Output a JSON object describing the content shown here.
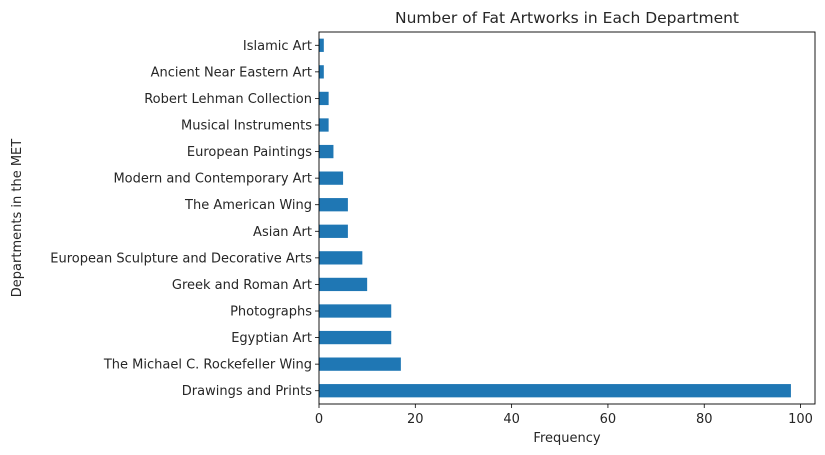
{
  "chart_data": {
    "type": "bar",
    "orientation": "horizontal",
    "title": "Number of Fat Artworks in Each Department",
    "xlabel": "Frequency",
    "ylabel": "Departments in the MET",
    "xlim": [
      0,
      103
    ],
    "xticks": [
      0,
      20,
      40,
      60,
      80,
      100
    ],
    "grid": false,
    "bar_color": "#1f77b4",
    "categories": [
      "Drawings and Prints",
      "The Michael C. Rockefeller Wing",
      "Egyptian Art",
      "Photographs",
      "Greek and Roman Art",
      "European Sculpture and Decorative Arts",
      "Asian Art",
      "The American Wing",
      "Modern and Contemporary Art",
      "European Paintings",
      "Musical Instruments",
      "Robert Lehman Collection",
      "Ancient Near Eastern Art",
      "Islamic Art"
    ],
    "values": [
      98,
      17,
      15,
      15,
      10,
      9,
      6,
      6,
      5,
      3,
      2,
      2,
      1,
      1
    ]
  }
}
